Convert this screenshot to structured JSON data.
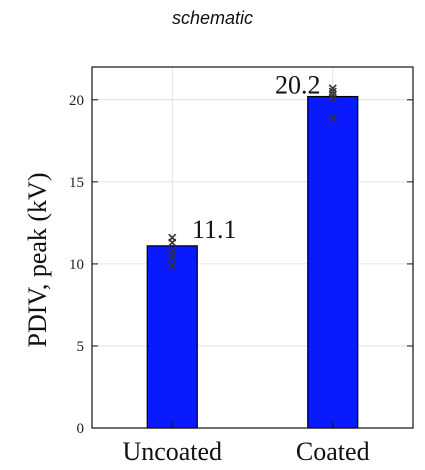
{
  "caption": "schematic",
  "chart_data": {
    "type": "bar",
    "title": "",
    "xlabel": "",
    "ylabel": "PDIV, peak (kV)",
    "categories": [
      "Uncoated",
      "Coated"
    ],
    "values": [
      11.1,
      20.2
    ],
    "data_labels": [
      "11.1",
      "20.2"
    ],
    "ylim": [
      0,
      22
    ],
    "yticks": [
      0,
      5,
      10,
      15,
      20
    ],
    "grid": true,
    "bar_color": "#0a1aff",
    "individual_points": [
      [
        11.6,
        11.3,
        10.8,
        10.4,
        9.9
      ],
      [
        20.7,
        20.5,
        20.3,
        20.1,
        18.9
      ]
    ]
  }
}
